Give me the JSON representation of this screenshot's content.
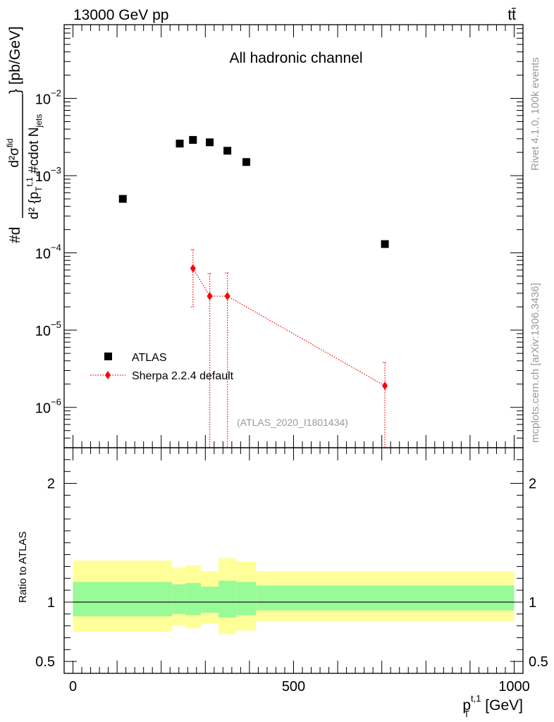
{
  "header": {
    "energy_label": "13000 GeV pp",
    "process_label": "tt̄"
  },
  "side_labels": {
    "rivet": "Rivet 4.1.0,  100k events",
    "mcplots": "mcplots.cern.ch [arXiv:1306.3436]"
  },
  "chart_data": {
    "type": "scatter",
    "title": "All hadronic channel",
    "analysis_tag": "(ATLAS_2020_I1801434)",
    "ylabel": "#d—d²σ^{fid}— d²{p_T^{t,1},#cdot N_{jets}} [pb/GeV]",
    "ylabel_parts": {
      "prefix": "#d",
      "numerator": "d²σ",
      "numerator_sup": "fid",
      "denominator": "d² {p",
      "denominator_sub": "T",
      "denominator_sup": "t,1",
      "denominator_rest": ",#cdot N",
      "denominator_rest_sub": "jets",
      "suffix": "} [pb/GeV]"
    },
    "xlabel": "p_T^{t,1} [GeV]",
    "xlabel_parts": {
      "main": "p",
      "sup": "t,1",
      "sub": "T",
      "unit": " [GeV]"
    },
    "xlim": [
      -20,
      1020
    ],
    "ylim_log": [
      3e-07,
      0.09
    ],
    "y_ticks": [
      {
        "value": 0.01,
        "base": "10",
        "exp": "−2"
      },
      {
        "value": 0.001,
        "base": "10",
        "exp": "−3"
      },
      {
        "value": 0.0001,
        "base": "10",
        "exp": "−4"
      },
      {
        "value": 1e-05,
        "base": "10",
        "exp": "−5"
      },
      {
        "value": 1e-06,
        "base": "10",
        "exp": "−6"
      }
    ],
    "x_ticks": [
      {
        "value": 0,
        "label": "0"
      },
      {
        "value": 500,
        "label": "500"
      },
      {
        "value": 1000,
        "label": "1000"
      }
    ],
    "legend": {
      "position": "bottom-left",
      "entries": [
        "ATLAS",
        "Sherpa 2.2.4 default"
      ]
    },
    "series": [
      {
        "name": "ATLAS",
        "marker": "square",
        "color": "#000000",
        "x": [
          113,
          242,
          272,
          310,
          350,
          393,
          707
        ],
        "y": [
          0.0005,
          0.0026,
          0.0029,
          0.0027,
          0.0021,
          0.0015,
          0.00013
        ]
      },
      {
        "name": "Sherpa 2.2.4 default",
        "marker": "diamond",
        "color": "#ff0000",
        "line": "dotted",
        "x": [
          272,
          310,
          350,
          707
        ],
        "y": [
          6.3e-05,
          2.75e-05,
          2.75e-05,
          1.9e-06
        ],
        "y_err_low": [
          2e-05,
          3e-08,
          3e-08,
          3e-08
        ],
        "y_err_high": [
          0.00011,
          5.4e-05,
          5.5e-05,
          3.8e-06
        ]
      }
    ],
    "ratio": {
      "ylabel": "Ratio to ATLAS",
      "ylim": [
        0.4,
        2.3
      ],
      "y_ticks": [
        {
          "value": 0.5,
          "label": "0.5"
        },
        {
          "value": 1,
          "label": "1"
        },
        {
          "value": 2,
          "label": "2"
        }
      ],
      "bands": [
        {
          "x_low": 0,
          "x_high": 225,
          "stat_low": 0.88,
          "stat_high": 1.17,
          "tot_low": 0.75,
          "tot_high": 1.35
        },
        {
          "x_low": 225,
          "x_high": 255,
          "stat_low": 0.9,
          "stat_high": 1.15,
          "tot_low": 0.8,
          "tot_high": 1.29
        },
        {
          "x_low": 255,
          "x_high": 290,
          "stat_low": 0.89,
          "stat_high": 1.16,
          "tot_low": 0.78,
          "tot_high": 1.31
        },
        {
          "x_low": 290,
          "x_high": 330,
          "stat_low": 0.91,
          "stat_high": 1.13,
          "tot_low": 0.82,
          "tot_high": 1.26
        },
        {
          "x_low": 330,
          "x_high": 370,
          "stat_low": 0.87,
          "stat_high": 1.18,
          "tot_low": 0.73,
          "tot_high": 1.37
        },
        {
          "x_low": 370,
          "x_high": 415,
          "stat_low": 0.89,
          "stat_high": 1.17,
          "tot_low": 0.76,
          "tot_high": 1.34
        },
        {
          "x_low": 415,
          "x_high": 1000,
          "stat_low": 0.93,
          "stat_high": 1.14,
          "tot_low": 0.84,
          "tot_high": 1.26
        }
      ],
      "band_colors": {
        "stat": "#98fb98",
        "total": "#ffff99"
      }
    }
  }
}
